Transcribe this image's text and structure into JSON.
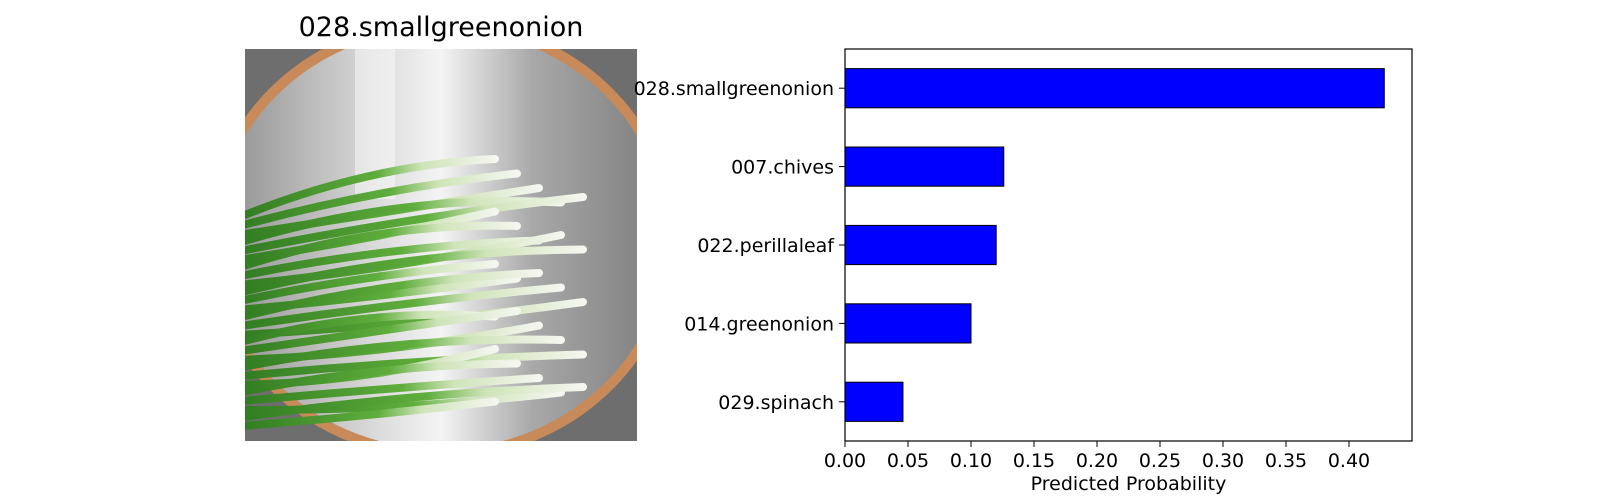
{
  "image_panel": {
    "title": "028.smallgreenonion"
  },
  "colors": {
    "bar_fill": "#0000ff",
    "bar_edge": "#000000",
    "onion_green": "#3f8f2a",
    "onion_white": "#eef3e6",
    "pot_metal": "#b8b8b8",
    "pot_rim": "#c98a5a"
  },
  "chart_data": {
    "type": "bar",
    "orientation": "horizontal",
    "categories": [
      "028.smallgreenonion",
      "007.chives",
      "022.perillaleaf",
      "014.greenonion",
      "029.spinach"
    ],
    "values": [
      0.428,
      0.126,
      0.12,
      0.1,
      0.046
    ],
    "xlabel": "Predicted Probability",
    "ylabel": "",
    "xlim": [
      0,
      0.45
    ],
    "xticks": [
      "0.00",
      "0.05",
      "0.10",
      "0.15",
      "0.20",
      "0.25",
      "0.30",
      "0.35",
      "0.40"
    ],
    "grid": false,
    "legend": "none"
  }
}
